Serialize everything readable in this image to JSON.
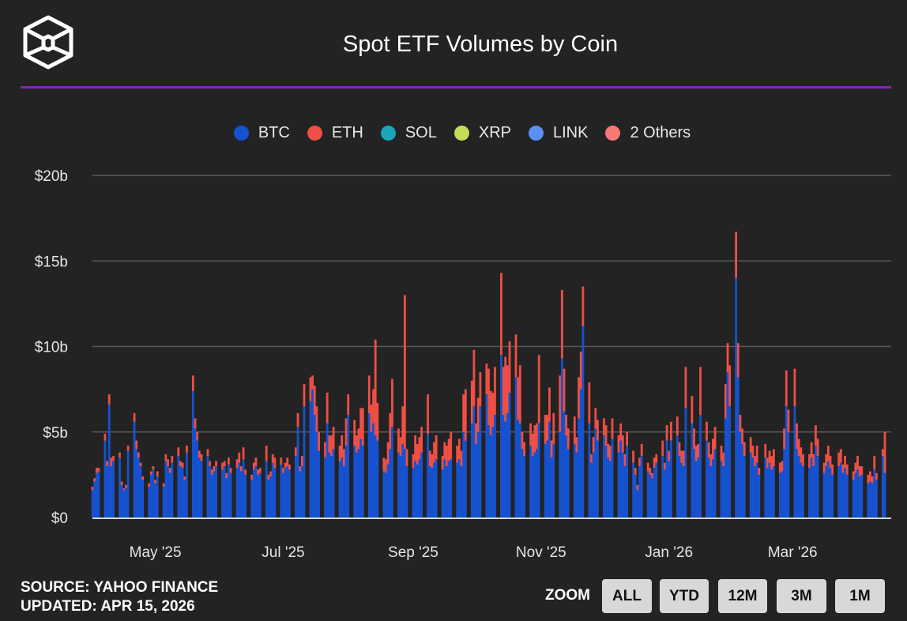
{
  "header": {
    "title": "Spot ETF Volumes by Coin",
    "logo": "cube-logo",
    "accent_color": "#8d1fc4"
  },
  "legend": [
    {
      "label": "BTC",
      "color": "#1652d0"
    },
    {
      "label": "ETH",
      "color": "#ef4f45"
    },
    {
      "label": "SOL",
      "color": "#17a7b8"
    },
    {
      "label": "XRP",
      "color": "#c3dc5a"
    },
    {
      "label": "LINK",
      "color": "#5b8ff0"
    },
    {
      "label": "2 Others",
      "color": "#f87878"
    }
  ],
  "footer": {
    "source": "SOURCE: YAHOO FINANCE",
    "updated": "UPDATED: APR 15, 2026"
  },
  "zoom": {
    "label": "ZOOM",
    "buttons": [
      "ALL",
      "YTD",
      "12M",
      "3M",
      "1M"
    ]
  },
  "chart_data": {
    "type": "bar",
    "stacked": true,
    "title": "Spot ETF Volumes by Coin",
    "ylim": [
      0,
      20
    ],
    "y_unit": "$b",
    "y_ticks": [
      "$0",
      "$5b",
      "$10b",
      "$15b",
      "$20b"
    ],
    "x_ticks": [
      "May '25",
      "Jul '25",
      "Sep '25",
      "Nov '25",
      "Jan '26",
      "Mar '26"
    ],
    "x_range": [
      "2025-04-01",
      "2026-04-14"
    ],
    "grid": true,
    "legend_position": "top",
    "months": [
      {
        "month": "2025-04",
        "days": [
          1,
          2,
          3,
          4,
          7,
          8,
          9,
          10,
          11,
          14,
          15,
          16,
          17,
          18,
          21,
          22,
          23,
          24,
          25,
          28,
          29,
          30
        ],
        "BTC": [
          1.6,
          2.1,
          2.6,
          2.7,
          4.5,
          3.0,
          6.6,
          3.0,
          3.3,
          3.5,
          1.9,
          1.6,
          1.7,
          3.9,
          5.6,
          4.0,
          3.5,
          3.0,
          2.2,
          1.8,
          2.5,
          2.8
        ],
        "ETH": [
          0.2,
          0.2,
          0.3,
          0.2,
          0.4,
          0.3,
          0.6,
          0.5,
          0.3,
          0.3,
          0.2,
          0.1,
          0.2,
          0.3,
          0.5,
          0.5,
          0.3,
          0.2,
          0.2,
          0.2,
          0.2,
          0.2
        ]
      },
      {
        "month": "2025-05",
        "days": [
          1,
          2,
          5,
          6,
          7,
          8,
          9,
          12,
          13,
          14,
          15,
          16,
          19,
          20,
          21,
          22,
          23,
          26,
          27,
          28,
          29,
          30
        ],
        "BTC": [
          2.0,
          2.4,
          1.8,
          3.3,
          3.0,
          2.6,
          3.2,
          3.6,
          3.0,
          2.9,
          2.2,
          3.8,
          7.4,
          5.2,
          4.5,
          3.5,
          3.3,
          3.6,
          3.0,
          2.5,
          2.7,
          3.0
        ],
        "ETH": [
          0.2,
          0.3,
          0.2,
          0.4,
          0.4,
          0.3,
          0.4,
          0.5,
          0.3,
          0.3,
          0.2,
          0.4,
          0.9,
          0.6,
          0.5,
          0.4,
          0.4,
          0.4,
          0.3,
          0.3,
          0.3,
          0.3
        ]
      },
      {
        "month": "2025-06",
        "days": [
          2,
          3,
          4,
          5,
          6,
          9,
          10,
          11,
          12,
          13,
          16,
          17,
          18,
          19,
          20,
          23,
          24,
          25,
          26,
          27,
          30
        ],
        "BTC": [
          2.8,
          3.0,
          2.3,
          3.1,
          2.6,
          2.9,
          3.2,
          2.7,
          3.4,
          2.5,
          2.2,
          2.8,
          3.0,
          2.5,
          2.6,
          3.3,
          2.2,
          2.4,
          3.2,
          2.9,
          3.1
        ],
        "ETH": [
          0.4,
          0.3,
          0.3,
          0.4,
          0.3,
          0.5,
          0.6,
          0.3,
          0.7,
          0.3,
          0.3,
          0.4,
          0.5,
          0.3,
          0.3,
          0.9,
          0.3,
          0.3,
          0.5,
          0.6,
          0.4
        ]
      },
      {
        "month": "2025-07",
        "days": [
          1,
          2,
          3,
          4,
          7,
          8,
          9,
          10,
          11,
          14,
          15,
          16,
          17,
          18,
          21,
          22,
          23,
          24,
          25,
          28,
          29,
          30,
          31
        ],
        "BTC": [
          2.6,
          2.9,
          3.0,
          2.8,
          3.6,
          5.3,
          2.7,
          3.0,
          6.5,
          6.8,
          7.5,
          6.0,
          5.0,
          3.9,
          3.5,
          5.5,
          3.8,
          3.6,
          4.0,
          3.3,
          3.5,
          3.0,
          4.2
        ],
        "ETH": [
          0.3,
          0.3,
          0.5,
          0.3,
          0.5,
          0.8,
          0.3,
          0.6,
          1.3,
          1.4,
          0.8,
          1.7,
          1.5,
          1.1,
          0.9,
          1.8,
          1.0,
          1.2,
          1.3,
          0.9,
          1.3,
          1.0,
          1.6
        ]
      },
      {
        "month": "2025-08",
        "days": [
          1,
          4,
          5,
          6,
          7,
          8,
          11,
          12,
          13,
          14,
          15,
          18,
          19,
          20,
          21,
          22,
          25,
          26,
          27,
          28,
          29
        ],
        "BTC": [
          6.0,
          4.2,
          3.8,
          4.0,
          4.6,
          4.2,
          6.1,
          5.0,
          5.5,
          4.8,
          4.5,
          2.7,
          2.6,
          3.1,
          4.0,
          5.3,
          3.8,
          3.6,
          4.3,
          4.0,
          3.0
        ],
        "ETH": [
          1.2,
          1.5,
          1.0,
          1.2,
          1.8,
          2.2,
          2.2,
          1.6,
          2.0,
          5.6,
          2.2,
          0.8,
          0.8,
          1.3,
          2.1,
          2.8,
          1.4,
          1.1,
          2.2,
          9.0,
          1.0
        ]
      },
      {
        "month": "2025-09",
        "days": [
          1,
          2,
          3,
          4,
          5,
          8,
          9,
          10,
          11,
          12,
          15,
          16,
          17,
          18,
          19,
          22,
          23,
          24,
          25,
          26,
          29,
          30
        ],
        "BTC": [
          2.9,
          3.3,
          3.1,
          3.4,
          3.8,
          4.9,
          3.0,
          2.9,
          3.2,
          3.4,
          2.8,
          3.4,
          3.0,
          3.3,
          3.4,
          3.2,
          3.4,
          3.0,
          5.0,
          4.5,
          5.5,
          6.5
        ],
        "ETH": [
          0.8,
          1.5,
          1.2,
          1.3,
          1.5,
          2.3,
          0.9,
          0.8,
          1.2,
          1.4,
          0.8,
          1.0,
          1.2,
          1.3,
          1.6,
          1.0,
          1.2,
          0.9,
          2.2,
          3.0,
          2.5,
          3.3
        ]
      },
      {
        "month": "2025-10",
        "days": [
          1,
          2,
          3,
          6,
          7,
          8,
          9,
          10,
          13,
          14,
          15,
          16,
          17,
          20,
          21,
          22,
          23,
          24,
          27,
          28,
          29,
          30,
          31
        ],
        "BTC": [
          4.3,
          5.0,
          6.5,
          7.2,
          5.4,
          4.8,
          5.3,
          6.0,
          9.5,
          6.0,
          5.6,
          6.1,
          7.3,
          8.2,
          5.7,
          5.5,
          4.0,
          3.6,
          4.2,
          3.6,
          3.8,
          4.0,
          5.5
        ],
        "ETH": [
          1.2,
          2.0,
          2.0,
          1.8,
          3.3,
          2.6,
          2.0,
          2.8,
          4.8,
          2.8,
          3.8,
          2.8,
          3.0,
          2.5,
          2.5,
          3.4,
          1.0,
          0.8,
          1.3,
          1.3,
          1.6,
          1.5,
          4.0
        ]
      },
      {
        "month": "2025-11",
        "days": [
          3,
          4,
          5,
          6,
          7,
          10,
          11,
          12,
          13,
          14,
          17,
          18,
          19,
          20,
          21,
          24,
          25,
          26,
          27,
          28
        ],
        "BTC": [
          4.3,
          4.5,
          5.6,
          3.5,
          4.3,
          5.0,
          9.3,
          6.2,
          4.8,
          4.0,
          4.3,
          3.8,
          5.8,
          7.5,
          11.2,
          5.5,
          3.2,
          3.8,
          5.2,
          4.5
        ],
        "ETH": [
          1.7,
          1.5,
          2.0,
          1.0,
          1.8,
          3.3,
          4.0,
          2.5,
          1.2,
          1.2,
          1.6,
          0.9,
          2.4,
          2.2,
          2.3,
          2.4,
          0.5,
          0.9,
          1.2,
          1.2
        ]
      },
      {
        "month": "2025-12",
        "days": [
          1,
          2,
          3,
          4,
          5,
          8,
          9,
          10,
          11,
          12,
          15,
          16,
          17,
          18,
          19,
          22,
          23,
          24,
          25,
          26,
          29,
          30,
          31
        ],
        "BTC": [
          4.8,
          4.2,
          3.5,
          3.3,
          4.6,
          3.8,
          4.5,
          3.8,
          3.0,
          4.2,
          3.2,
          2.5,
          1.6,
          3.0,
          3.6,
          2.7,
          2.5,
          2.3,
          2.9,
          3.2,
          3.6,
          2.8,
          4.5
        ],
        "ETH": [
          1.0,
          1.2,
          0.8,
          0.9,
          1.2,
          1.0,
          1.0,
          1.0,
          0.7,
          0.8,
          0.7,
          0.4,
          0.3,
          0.5,
          0.7,
          0.5,
          0.4,
          0.3,
          0.6,
          0.5,
          0.9,
          0.4,
          0.9
        ]
      },
      {
        "month": "2026-01",
        "days": [
          1,
          2,
          5,
          6,
          7,
          8,
          9,
          12,
          13,
          14,
          15,
          16,
          19,
          20,
          21,
          22,
          23,
          26,
          27,
          28,
          29,
          30
        ],
        "BTC": [
          3.3,
          4.5,
          4.8,
          3.6,
          3.2,
          3.0,
          6.4,
          5.5,
          4.0,
          3.3,
          3.5,
          6.0,
          4.5,
          3.5,
          3.0,
          3.4,
          4.0,
          3.3,
          3.0,
          5.8,
          8.5,
          6.5
        ],
        "ETH": [
          0.6,
          1.1,
          1.1,
          0.8,
          0.7,
          0.9,
          2.4,
          1.6,
          1.2,
          0.9,
          0.8,
          2.8,
          1.1,
          0.9,
          0.7,
          1.2,
          1.3,
          0.9,
          0.8,
          2.0,
          1.7,
          2.4
        ]
      },
      {
        "month": "2026-02",
        "days": [
          2,
          3,
          4,
          5,
          6,
          9,
          10,
          11,
          12,
          13,
          16,
          17,
          18,
          19,
          20,
          23,
          24,
          25,
          26,
          27
        ],
        "BTC": [
          14.0,
          8.2,
          5.0,
          4.3,
          3.6,
          3.8,
          3.5,
          3.0,
          3.2,
          2.5,
          3.5,
          2.9,
          3.2,
          2.8,
          3.0,
          2.6,
          2.7,
          4.0,
          6.5,
          5.0
        ],
        "ETH": [
          2.7,
          2.0,
          1.0,
          0.9,
          0.8,
          0.9,
          0.7,
          0.6,
          1.0,
          0.4,
          0.8,
          0.6,
          0.7,
          0.8,
          1.0,
          0.6,
          0.6,
          1.2,
          2.1,
          1.3
        ]
      },
      {
        "month": "2026-03",
        "days": [
          2,
          3,
          4,
          5,
          6,
          9,
          10,
          11,
          12,
          13,
          16,
          17,
          18,
          19,
          20,
          23,
          24,
          25,
          26,
          27,
          30,
          31
        ],
        "BTC": [
          6.5,
          4.0,
          3.6,
          3.2,
          3.0,
          2.9,
          3.5,
          3.0,
          4.2,
          3.6,
          2.6,
          3.0,
          3.3,
          2.9,
          2.5,
          3.0,
          3.2,
          2.6,
          2.9,
          2.5,
          2.2,
          2.6
        ],
        "ETH": [
          2.2,
          1.5,
          1.0,
          0.9,
          0.7,
          0.8,
          0.9,
          0.7,
          1.2,
          1.0,
          0.6,
          0.7,
          0.9,
          0.7,
          0.6,
          0.8,
          0.8,
          0.5,
          0.7,
          0.6,
          0.5,
          0.6
        ]
      },
      {
        "month": "2026-04",
        "days": [
          1,
          2,
          3,
          6,
          7,
          8,
          9,
          10,
          13,
          14
        ],
        "BTC": [
          2.8,
          2.4,
          2.5,
          2.0,
          2.1,
          2.0,
          2.8,
          2.2,
          3.6,
          2.6
        ],
        "ETH": [
          0.8,
          0.6,
          0.5,
          0.5,
          0.6,
          0.4,
          0.8,
          0.4,
          0.4,
          2.4
        ]
      }
    ]
  }
}
